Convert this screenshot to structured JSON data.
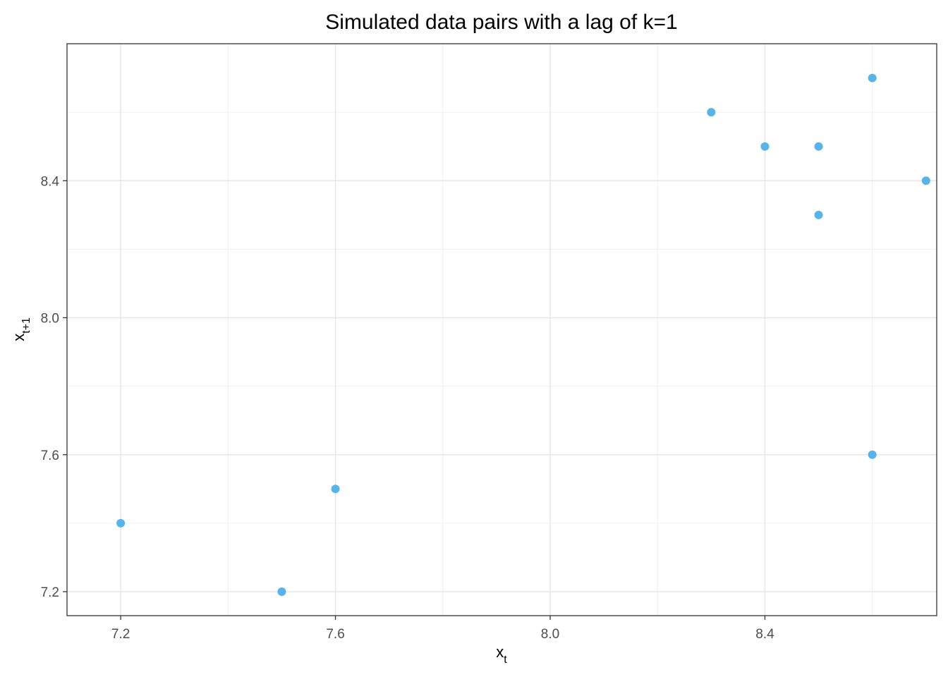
{
  "chart_data": {
    "type": "scatter",
    "title": "Simulated data pairs with a lag of k=1",
    "xlabel": {
      "base": "x",
      "sub": "t"
    },
    "ylabel": {
      "base": "x",
      "sub": "t+1"
    },
    "xlim": [
      7.1,
      8.72
    ],
    "ylim": [
      7.13,
      8.8
    ],
    "x_ticks": [
      7.2,
      7.6,
      8.0,
      8.4
    ],
    "x_tick_labels": [
      "7.2",
      "7.6",
      "8.0",
      "8.4"
    ],
    "x_minor": [
      7.4,
      7.8,
      8.2,
      8.6
    ],
    "y_ticks": [
      7.2,
      7.6,
      8.0,
      8.4
    ],
    "y_tick_labels": [
      "7.2",
      "7.6",
      "8.0",
      "8.4"
    ],
    "y_minor": [
      7.4,
      7.8,
      8.2,
      8.6
    ],
    "grid": true,
    "point_color": "#56B4E9",
    "points": [
      {
        "x": 7.2,
        "y": 7.4
      },
      {
        "x": 7.5,
        "y": 7.2
      },
      {
        "x": 7.6,
        "y": 7.5
      },
      {
        "x": 8.3,
        "y": 8.6
      },
      {
        "x": 8.4,
        "y": 8.5
      },
      {
        "x": 8.5,
        "y": 8.5
      },
      {
        "x": 8.5,
        "y": 8.3
      },
      {
        "x": 8.6,
        "y": 8.7
      },
      {
        "x": 8.6,
        "y": 7.6
      },
      {
        "x": 8.7,
        "y": 8.4
      }
    ]
  }
}
